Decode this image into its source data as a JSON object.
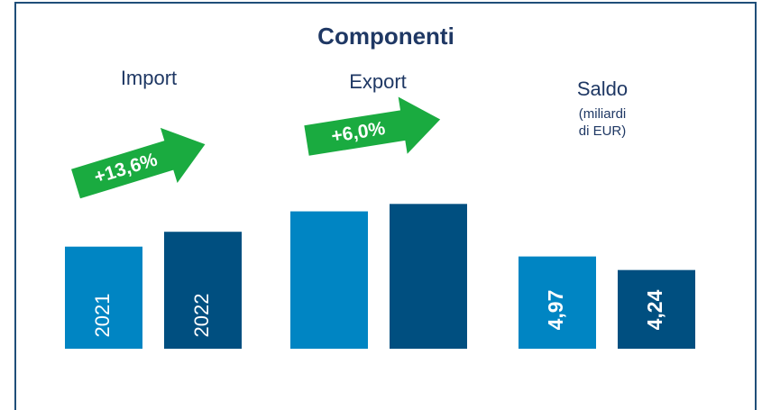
{
  "chart_data": {
    "type": "bar",
    "title": "Componenti",
    "categories": [
      "Import",
      "Export",
      "Saldo"
    ],
    "category_note": {
      "category": 2,
      "lines": [
        "(miliardi",
        "di EUR)"
      ]
    },
    "series": [
      {
        "name": "2021",
        "color": "#0085c3",
        "values": [
          5.5,
          7.4,
          4.97
        ],
        "value_labels": [
          null,
          null,
          "4,97"
        ]
      },
      {
        "name": "2022",
        "color": "#004f80",
        "values": [
          6.3,
          7.8,
          4.24
        ],
        "value_labels": [
          null,
          null,
          "4,24"
        ]
      }
    ],
    "annotations": [
      {
        "text": "+13,6%",
        "category": 0,
        "color": "#1aab40"
      },
      {
        "text": "+6,0%",
        "category": 1,
        "color": "#1aab40"
      }
    ],
    "ylim": [
      0,
      10
    ]
  }
}
